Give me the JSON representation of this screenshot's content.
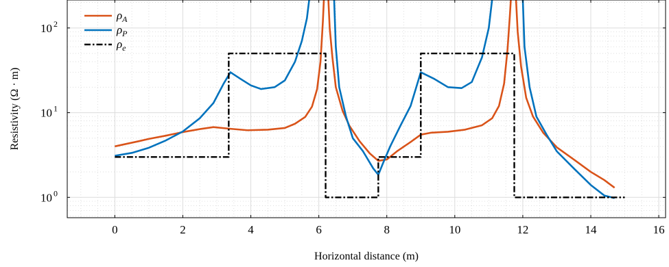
{
  "chart_data": {
    "type": "line",
    "xlabel": "Horizontal distance (m)",
    "ylabel": "Resistivity (Ω · m)",
    "xlim": [
      -1.4,
      16.2
    ],
    "ylim_log10": [
      -0.24,
      2.33
    ],
    "y_scale": "log",
    "grid": "major solid, minor dotted",
    "legend_position": "top-left",
    "x_ticks": [
      0,
      2,
      4,
      6,
      8,
      10,
      12,
      14,
      16
    ],
    "x_tick_labels": [
      "0",
      "2",
      "4",
      "6",
      "8",
      "10",
      "12",
      "14",
      "16"
    ],
    "y_ticks": [
      1,
      10,
      100
    ],
    "y_tick_base": "10",
    "y_tick_exponents": [
      "0",
      "1",
      "2"
    ],
    "colors": {
      "rho_A": "#d95319",
      "rho_P": "#0072bd",
      "rho_e": "#000000"
    },
    "series": [
      {
        "name_base": "ρ",
        "name_sub": "A",
        "key": "rho_A",
        "style": "solid",
        "points": [
          [
            0.0,
            4.0
          ],
          [
            0.3,
            4.25
          ],
          [
            0.7,
            4.6
          ],
          [
            1.0,
            4.9
          ],
          [
            1.5,
            5.35
          ],
          [
            2.0,
            5.9
          ],
          [
            2.5,
            6.4
          ],
          [
            2.9,
            6.75
          ],
          [
            3.4,
            6.45
          ],
          [
            3.9,
            6.2
          ],
          [
            4.5,
            6.3
          ],
          [
            5.0,
            6.6
          ],
          [
            5.3,
            7.4
          ],
          [
            5.6,
            8.9
          ],
          [
            5.8,
            11.8
          ],
          [
            5.95,
            19.0
          ],
          [
            6.05,
            40.0
          ],
          [
            6.12,
            120.0
          ],
          [
            6.15,
            220.0
          ],
          [
            6.28,
            220.0
          ],
          [
            6.32,
            100.0
          ],
          [
            6.4,
            45.0
          ],
          [
            6.5,
            20.0
          ],
          [
            6.7,
            10.5
          ],
          [
            6.9,
            7.0
          ],
          [
            7.2,
            4.6
          ],
          [
            7.5,
            3.3
          ],
          [
            7.75,
            2.7
          ],
          [
            8.0,
            2.8
          ],
          [
            8.3,
            3.5
          ],
          [
            8.7,
            4.5
          ],
          [
            9.0,
            5.5
          ],
          [
            9.3,
            5.8
          ],
          [
            9.8,
            5.95
          ],
          [
            10.3,
            6.3
          ],
          [
            10.8,
            7.1
          ],
          [
            11.1,
            8.6
          ],
          [
            11.3,
            12.0
          ],
          [
            11.45,
            22.0
          ],
          [
            11.55,
            55.0
          ],
          [
            11.62,
            140.0
          ],
          [
            11.65,
            220.0
          ],
          [
            11.8,
            220.0
          ],
          [
            11.85,
            90.0
          ],
          [
            11.95,
            35.0
          ],
          [
            12.1,
            15.0
          ],
          [
            12.3,
            9.0
          ],
          [
            12.6,
            5.8
          ],
          [
            13.0,
            3.9
          ],
          [
            13.5,
            2.8
          ],
          [
            14.0,
            2.0
          ],
          [
            14.4,
            1.6
          ],
          [
            14.7,
            1.3
          ]
        ]
      },
      {
        "name_base": "ρ",
        "name_sub": "P",
        "key": "rho_P",
        "style": "solid",
        "points": [
          [
            0.0,
            3.1
          ],
          [
            0.5,
            3.35
          ],
          [
            1.0,
            3.85
          ],
          [
            1.5,
            4.7
          ],
          [
            2.0,
            6.0
          ],
          [
            2.5,
            8.6
          ],
          [
            2.9,
            13.0
          ],
          [
            3.2,
            22.0
          ],
          [
            3.4,
            30.0
          ],
          [
            3.7,
            25.0
          ],
          [
            4.0,
            21.0
          ],
          [
            4.3,
            19.0
          ],
          [
            4.7,
            20.0
          ],
          [
            5.0,
            24.0
          ],
          [
            5.3,
            40.0
          ],
          [
            5.5,
            70.0
          ],
          [
            5.65,
            130.0
          ],
          [
            5.72,
            220.0
          ],
          [
            6.45,
            220.0
          ],
          [
            6.5,
            60.0
          ],
          [
            6.6,
            20.0
          ],
          [
            6.8,
            9.0
          ],
          [
            7.0,
            5.0
          ],
          [
            7.3,
            3.5
          ],
          [
            7.6,
            2.2
          ],
          [
            7.75,
            1.85
          ],
          [
            7.9,
            2.6
          ],
          [
            8.1,
            4.0
          ],
          [
            8.4,
            7.0
          ],
          [
            8.7,
            12.0
          ],
          [
            9.0,
            30.0
          ],
          [
            9.4,
            25.0
          ],
          [
            9.8,
            20.0
          ],
          [
            10.2,
            19.5
          ],
          [
            10.5,
            23.0
          ],
          [
            10.8,
            45.0
          ],
          [
            11.0,
            100.0
          ],
          [
            11.1,
            220.0
          ],
          [
            12.0,
            220.0
          ],
          [
            12.05,
            60.0
          ],
          [
            12.2,
            20.0
          ],
          [
            12.4,
            9.0
          ],
          [
            12.7,
            5.5
          ],
          [
            13.0,
            3.5
          ],
          [
            13.5,
            2.2
          ],
          [
            14.0,
            1.4
          ],
          [
            14.4,
            1.05
          ],
          [
            14.7,
            0.98
          ]
        ]
      },
      {
        "name_base": "ρ",
        "name_sub": "e",
        "key": "rho_e",
        "style": "dashdot",
        "points": [
          [
            0.0,
            3.0
          ],
          [
            3.35,
            3.0
          ],
          [
            3.35,
            50.0
          ],
          [
            6.2,
            50.0
          ],
          [
            6.2,
            1.0
          ],
          [
            7.75,
            1.0
          ],
          [
            7.75,
            3.0
          ],
          [
            9.0,
            3.0
          ],
          [
            9.0,
            50.0
          ],
          [
            11.75,
            50.0
          ],
          [
            11.75,
            1.0
          ],
          [
            15.0,
            1.0
          ]
        ]
      }
    ]
  }
}
